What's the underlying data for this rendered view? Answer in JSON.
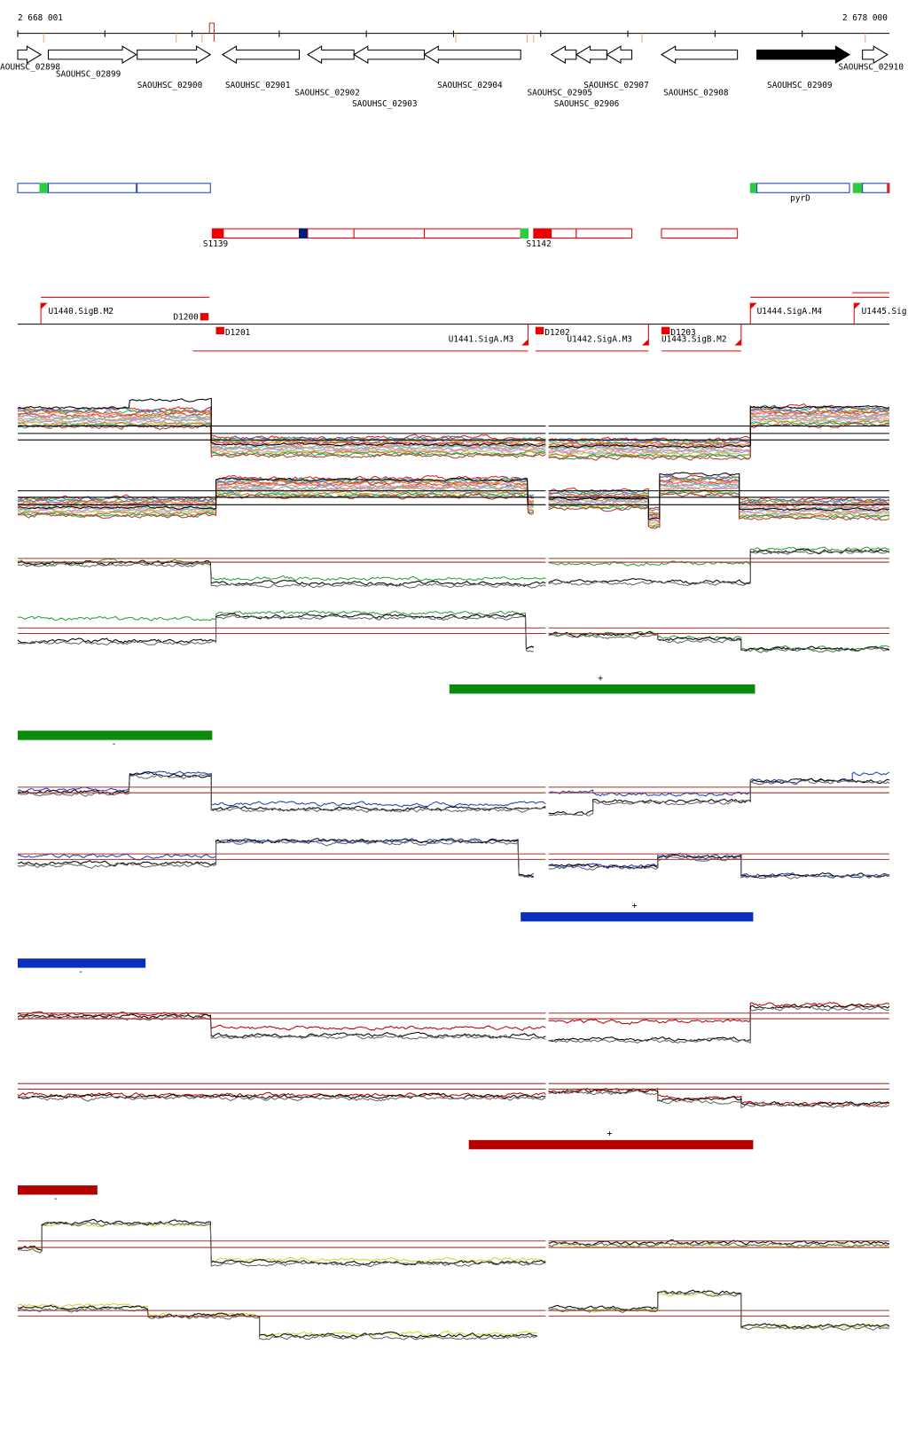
{
  "ruler": {
    "start": "2 668 001",
    "end": "2 678 000"
  },
  "genes": [
    "AOUHSC_02898",
    "SAOUHSC_02899",
    "SAOUHSC_02900",
    "SAOUHSC_02901",
    "SAOUHSC_02902",
    "SAOUHSC_02903",
    "SAOUHSC_02904",
    "SAOUHSC_02905",
    "SAOUHSC_02906",
    "SAOUHSC_02907",
    "SAOUHSC_02908",
    "SAOUHSC_02909",
    "SAOUHSC_02910"
  ],
  "features": [
    "pyrD"
  ],
  "segments": [
    "S1139",
    "S1142"
  ],
  "breakpoints": [
    "D1200",
    "D1201",
    "D1202",
    "D1203"
  ],
  "promoters": [
    "U1440.SigB.M2",
    "U1441.SigA.M3",
    "U1442.SigA.M3",
    "U1443.SigB.M2",
    "U1444.SigA.M4",
    "U1445.Sig"
  ],
  "strand_labels": [
    "+",
    "-",
    "+",
    "-",
    "+",
    "-"
  ]
}
